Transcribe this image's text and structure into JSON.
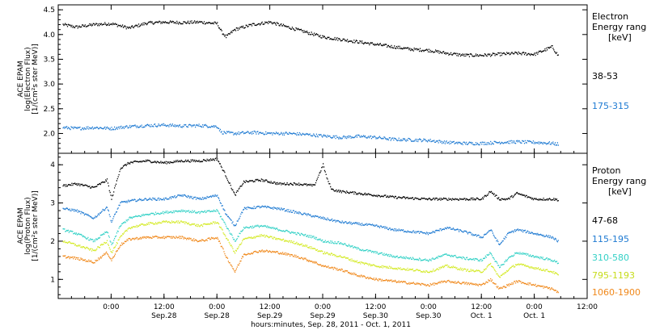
{
  "chart_data": [
    {
      "type": "line",
      "panel": "electron",
      "ylabel_lines": [
        "ACE EPAM",
        "log(Electron Flux)",
        "[1/(cm²s ster MeV)]"
      ],
      "ylim": [
        1.6,
        4.6
      ],
      "yticks": [
        2.0,
        2.5,
        3.0,
        3.5,
        4.0,
        4.5
      ],
      "ytick_labels": [
        "2.0",
        "2.5",
        "3.0",
        "3.5",
        "4.0",
        "4.5"
      ],
      "legend_title": [
        "Electron",
        "Energy ranges",
        "[keV]"
      ],
      "series": [
        {
          "name": "38-53",
          "color": "#000000",
          "x": [
            -11,
            -8,
            -4,
            0,
            4,
            8,
            12,
            16,
            20,
            24,
            25,
            26,
            28,
            32,
            36,
            40,
            44,
            48,
            52,
            56,
            60,
            64,
            68,
            72,
            76,
            80,
            84,
            88,
            92,
            96,
            100,
            101.5
          ],
          "y": [
            4.2,
            4.15,
            4.2,
            4.22,
            4.13,
            4.23,
            4.25,
            4.24,
            4.25,
            4.22,
            4.05,
            3.95,
            4.1,
            4.2,
            4.25,
            4.15,
            4.05,
            3.95,
            3.9,
            3.85,
            3.8,
            3.75,
            3.7,
            3.68,
            3.62,
            3.58,
            3.58,
            3.6,
            3.62,
            3.6,
            3.75,
            3.55
          ]
        },
        {
          "name": "175-315",
          "color": "#1e7ad2",
          "x": [
            -11,
            -8,
            -4,
            0,
            4,
            8,
            12,
            16,
            20,
            24,
            25,
            28,
            32,
            36,
            40,
            44,
            48,
            52,
            56,
            60,
            64,
            68,
            72,
            76,
            80,
            84,
            88,
            92,
            96,
            100,
            101.5
          ],
          "y": [
            2.12,
            2.1,
            2.12,
            2.1,
            2.14,
            2.16,
            2.17,
            2.15,
            2.16,
            2.14,
            2.02,
            2.0,
            2.02,
            2.0,
            2.0,
            1.98,
            1.95,
            1.92,
            1.94,
            1.92,
            1.88,
            1.87,
            1.86,
            1.82,
            1.8,
            1.8,
            1.82,
            1.83,
            1.82,
            1.8,
            1.78
          ]
        }
      ]
    },
    {
      "type": "line",
      "panel": "proton",
      "ylabel_lines": [
        "ACE EPAM",
        "log(Proton Flux)",
        "[1/(cm²s ster MeV)]"
      ],
      "ylim": [
        0.5,
        4.3
      ],
      "yticks": [
        1,
        2,
        3,
        4
      ],
      "ytick_labels": [
        "1",
        "2",
        "3",
        "4"
      ],
      "legend_title": [
        "Proton",
        "Energy ranges",
        "[keV]"
      ],
      "series": [
        {
          "name": "47-68",
          "color": "#000000",
          "x": [
            -11,
            -8,
            -4,
            -1,
            0,
            2,
            4,
            8,
            12,
            16,
            20,
            24,
            26,
            28,
            30,
            34,
            38,
            42,
            46,
            48,
            49,
            50,
            52,
            56,
            60,
            64,
            68,
            72,
            76,
            80,
            84,
            86,
            88,
            90,
            92,
            96,
            100,
            101.5
          ],
          "y": [
            3.45,
            3.5,
            3.4,
            3.6,
            3.1,
            3.9,
            4.05,
            4.1,
            4.05,
            4.1,
            4.1,
            4.15,
            3.7,
            3.2,
            3.55,
            3.6,
            3.5,
            3.5,
            3.45,
            4.0,
            3.6,
            3.35,
            3.3,
            3.25,
            3.2,
            3.15,
            3.12,
            3.1,
            3.1,
            3.1,
            3.1,
            3.3,
            3.1,
            3.1,
            3.25,
            3.1,
            3.1,
            3.08
          ]
        },
        {
          "name": "115-195",
          "color": "#1e7ad2",
          "x": [
            -11,
            -8,
            -4,
            -1,
            0,
            2,
            4,
            8,
            12,
            16,
            20,
            24,
            26,
            28,
            30,
            34,
            38,
            42,
            46,
            48,
            52,
            56,
            60,
            64,
            68,
            72,
            76,
            80,
            84,
            86,
            88,
            90,
            92,
            96,
            100,
            101.5
          ],
          "y": [
            2.85,
            2.8,
            2.6,
            2.9,
            2.5,
            3.0,
            3.05,
            3.1,
            3.1,
            3.2,
            3.1,
            3.2,
            2.7,
            2.4,
            2.85,
            2.9,
            2.85,
            2.75,
            2.65,
            2.6,
            2.5,
            2.45,
            2.4,
            2.3,
            2.25,
            2.2,
            2.35,
            2.25,
            2.1,
            2.3,
            1.9,
            2.2,
            2.3,
            2.2,
            2.1,
            1.98
          ]
        },
        {
          "name": "310-580",
          "color": "#33d1c6",
          "x": [
            -11,
            -8,
            -4,
            -1,
            0,
            2,
            4,
            8,
            12,
            16,
            20,
            24,
            26,
            28,
            30,
            34,
            38,
            42,
            46,
            48,
            52,
            56,
            60,
            64,
            68,
            72,
            76,
            80,
            84,
            86,
            88,
            90,
            92,
            96,
            100,
            101.5
          ],
          "y": [
            2.3,
            2.2,
            2.0,
            2.25,
            1.9,
            2.4,
            2.6,
            2.7,
            2.75,
            2.8,
            2.75,
            2.8,
            2.4,
            2.0,
            2.35,
            2.4,
            2.3,
            2.2,
            2.1,
            2.0,
            1.95,
            1.8,
            1.7,
            1.6,
            1.55,
            1.5,
            1.65,
            1.55,
            1.5,
            1.7,
            1.3,
            1.55,
            1.7,
            1.6,
            1.5,
            1.42
          ]
        },
        {
          "name": "795-1193",
          "color": "#d4ea26",
          "x": [
            -11,
            -8,
            -4,
            -1,
            0,
            2,
            4,
            8,
            12,
            16,
            20,
            24,
            26,
            28,
            30,
            34,
            38,
            42,
            46,
            48,
            52,
            56,
            60,
            64,
            68,
            72,
            76,
            80,
            84,
            86,
            88,
            90,
            92,
            96,
            100,
            101.5
          ],
          "y": [
            2.0,
            1.9,
            1.75,
            2.0,
            1.7,
            2.1,
            2.35,
            2.45,
            2.5,
            2.5,
            2.4,
            2.5,
            2.1,
            1.7,
            2.05,
            2.15,
            2.05,
            1.95,
            1.8,
            1.7,
            1.6,
            1.45,
            1.35,
            1.3,
            1.25,
            1.2,
            1.35,
            1.25,
            1.2,
            1.4,
            1.05,
            1.25,
            1.4,
            1.3,
            1.2,
            1.1
          ]
        },
        {
          "name": "1060-1900",
          "color": "#f0881a",
          "x": [
            -11,
            -8,
            -4,
            -1,
            0,
            2,
            4,
            8,
            12,
            16,
            20,
            24,
            26,
            28,
            30,
            34,
            38,
            42,
            46,
            48,
            52,
            56,
            60,
            64,
            68,
            72,
            76,
            80,
            84,
            86,
            88,
            90,
            92,
            96,
            100,
            101.5
          ],
          "y": [
            1.6,
            1.55,
            1.45,
            1.7,
            1.5,
            1.9,
            2.05,
            2.1,
            2.1,
            2.1,
            2.0,
            2.1,
            1.6,
            1.2,
            1.65,
            1.75,
            1.7,
            1.6,
            1.45,
            1.35,
            1.25,
            1.1,
            1.0,
            0.95,
            0.9,
            0.85,
            0.95,
            0.9,
            0.85,
            1.0,
            0.75,
            0.85,
            0.95,
            0.85,
            0.75,
            0.65
          ]
        }
      ]
    }
  ],
  "x_axis": {
    "xlim": [
      -12,
      108
    ],
    "ticks": [
      0,
      12,
      24,
      36,
      48,
      60,
      72,
      84,
      96,
      108
    ],
    "tick_labels_top": [
      "0:00",
      "12:00",
      "0:00",
      "12:00",
      "0:00",
      "12:00",
      "0:00",
      "12:00",
      "0:00",
      "12:00"
    ],
    "tick_labels_bottom": [
      "Sep.28",
      "Sep.28",
      "Sep.29",
      "Sep.29",
      "Sep.30",
      "Sep.30",
      "Oct. 1",
      "Oct. 1"
    ],
    "xlabel": "hours:minutes, Sep. 28, 2011 - Oct.  1, 2011"
  }
}
